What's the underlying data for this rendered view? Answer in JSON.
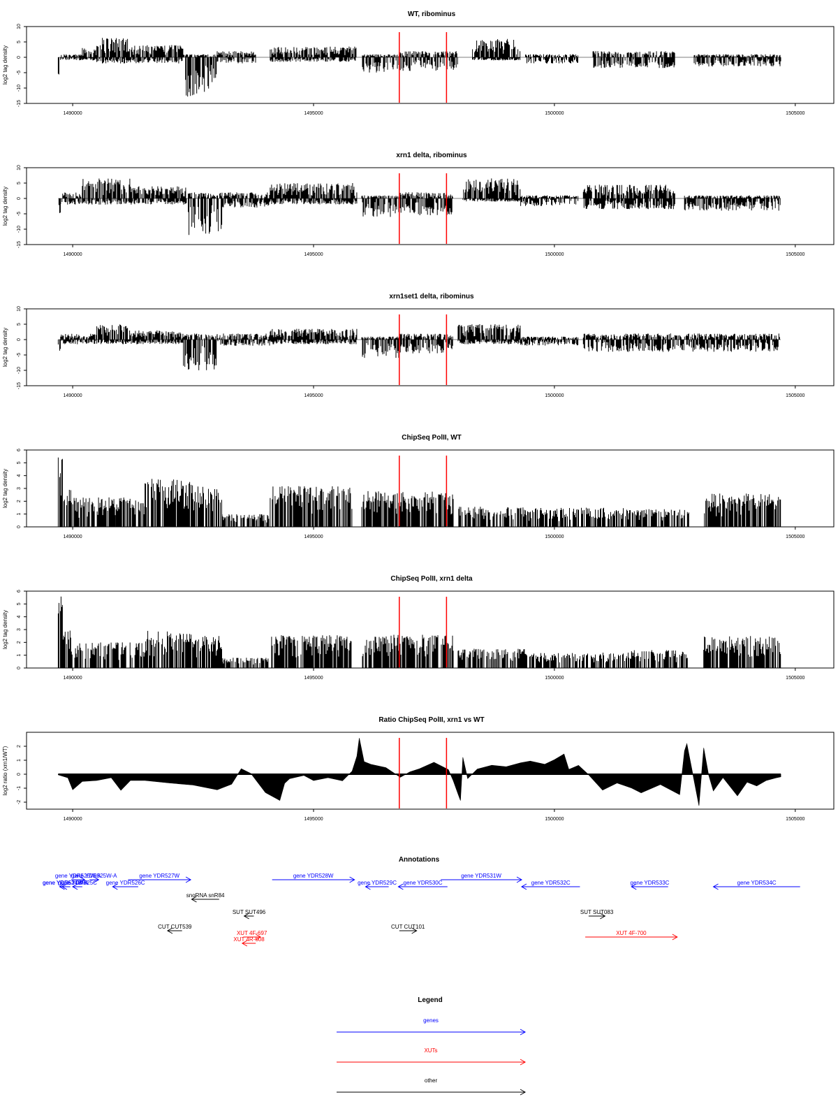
{
  "colors": {
    "gene": "#0000ff",
    "xut": "#ff0000",
    "other": "#000000",
    "marker": "#ff0000",
    "baseline": "#bebebe",
    "signal": "#000000"
  },
  "x_ticks": [
    "1490000",
    "1495000",
    "1500000",
    "1505000"
  ],
  "chart_data": [
    {
      "type": "bar",
      "title": "WT, ribominus",
      "ylabel": "log2 tag density",
      "xlim": [
        1489700,
        1504700
      ],
      "ylim": [
        -15,
        10
      ],
      "yticks": [
        "10",
        "5",
        "0",
        "-5",
        "-10",
        "-15"
      ],
      "x_tick_values": [
        1490000,
        1495000,
        1500000,
        1505000
      ],
      "markers": [
        1496780,
        1497760
      ],
      "baseline": true,
      "profile": [
        {
          "from": 1489700,
          "to": 1489750,
          "pos": 0,
          "neg": -7
        },
        {
          "from": 1489750,
          "to": 1490200,
          "pos": 1,
          "neg": -1
        },
        {
          "from": 1490200,
          "to": 1490500,
          "pos": 3,
          "neg": -1
        },
        {
          "from": 1490500,
          "to": 1491200,
          "pos": 6.5,
          "neg": -2
        },
        {
          "from": 1491200,
          "to": 1492300,
          "pos": 4,
          "neg": -2
        },
        {
          "from": 1492300,
          "to": 1493000,
          "pos": 1,
          "neg": -13
        },
        {
          "from": 1493000,
          "to": 1493800,
          "pos": 2,
          "neg": -2
        },
        {
          "from": 1494100,
          "to": 1495900,
          "pos": 3.5,
          "neg": -1.5
        },
        {
          "from": 1496000,
          "to": 1496800,
          "pos": 1,
          "neg": -5
        },
        {
          "from": 1496800,
          "to": 1498000,
          "pos": 2,
          "neg": -4.5
        },
        {
          "from": 1498300,
          "to": 1499300,
          "pos": 6,
          "neg": -1
        },
        {
          "from": 1499400,
          "to": 1500500,
          "pos": 1,
          "neg": -2
        },
        {
          "from": 1500800,
          "to": 1502500,
          "pos": 2,
          "neg": -3.5
        },
        {
          "from": 1502900,
          "to": 1504700,
          "pos": 1,
          "neg": -3
        }
      ]
    },
    {
      "type": "bar",
      "title": "xrn1 delta, ribominus",
      "ylabel": "log2 tag density",
      "xlim": [
        1489700,
        1504700
      ],
      "ylim": [
        -15,
        10
      ],
      "yticks": [
        "10",
        "5",
        "0",
        "-5",
        "-10",
        "-15"
      ],
      "x_tick_values": [
        1490000,
        1495000,
        1500000,
        1505000
      ],
      "markers": [
        1496780,
        1497760
      ],
      "baseline": true,
      "profile": [
        {
          "from": 1489700,
          "to": 1489750,
          "pos": 0,
          "neg": -7.5
        },
        {
          "from": 1489750,
          "to": 1490200,
          "pos": 2,
          "neg": -2
        },
        {
          "from": 1490200,
          "to": 1491200,
          "pos": 6.5,
          "neg": -2
        },
        {
          "from": 1491200,
          "to": 1492400,
          "pos": 4,
          "neg": -2
        },
        {
          "from": 1492400,
          "to": 1493100,
          "pos": 2,
          "neg": -12
        },
        {
          "from": 1493100,
          "to": 1494100,
          "pos": 2,
          "neg": -3
        },
        {
          "from": 1494100,
          "to": 1495900,
          "pos": 5,
          "neg": -2
        },
        {
          "from": 1496000,
          "to": 1496800,
          "pos": 1,
          "neg": -6
        },
        {
          "from": 1496800,
          "to": 1497900,
          "pos": 2,
          "neg": -5.5
        },
        {
          "from": 1498100,
          "to": 1499300,
          "pos": 6.5,
          "neg": -1
        },
        {
          "from": 1499300,
          "to": 1500500,
          "pos": 1,
          "neg": -2.5
        },
        {
          "from": 1500600,
          "to": 1502500,
          "pos": 4.5,
          "neg": -3.5
        },
        {
          "from": 1502700,
          "to": 1504700,
          "pos": 1,
          "neg": -4
        }
      ]
    },
    {
      "type": "bar",
      "title": "xrn1set1 delta, ribominus",
      "ylabel": "log2 tag density",
      "xlim": [
        1489700,
        1504700
      ],
      "ylim": [
        -15,
        10
      ],
      "yticks": [
        "10",
        "5",
        "0",
        "-5",
        "-10",
        "-15"
      ],
      "x_tick_values": [
        1490000,
        1495000,
        1500000,
        1505000
      ],
      "markers": [
        1496780,
        1497760
      ],
      "baseline": true,
      "profile": [
        {
          "from": 1489700,
          "to": 1489750,
          "pos": 0,
          "neg": -7
        },
        {
          "from": 1489750,
          "to": 1490500,
          "pos": 2,
          "neg": -1.5
        },
        {
          "from": 1490500,
          "to": 1491200,
          "pos": 5,
          "neg": -1.5
        },
        {
          "from": 1491200,
          "to": 1492300,
          "pos": 3,
          "neg": -1.5
        },
        {
          "from": 1492300,
          "to": 1493000,
          "pos": 2,
          "neg": -10
        },
        {
          "from": 1493000,
          "to": 1494100,
          "pos": 2,
          "neg": -2
        },
        {
          "from": 1494100,
          "to": 1495900,
          "pos": 3.5,
          "neg": -1.5
        },
        {
          "from": 1496000,
          "to": 1496800,
          "pos": 1,
          "neg": -6
        },
        {
          "from": 1496800,
          "to": 1497900,
          "pos": 2,
          "neg": -4.5
        },
        {
          "from": 1498000,
          "to": 1499300,
          "pos": 5,
          "neg": -1.5
        },
        {
          "from": 1499300,
          "to": 1500500,
          "pos": 1,
          "neg": -2
        },
        {
          "from": 1500600,
          "to": 1504700,
          "pos": 2,
          "neg": -4
        }
      ]
    },
    {
      "type": "bar",
      "title": "ChipSeq PolII, WT",
      "ylabel": "log2 tag density",
      "xlim": [
        1489700,
        1504700
      ],
      "ylim": [
        0,
        6
      ],
      "yticks": [
        "6",
        "5",
        "4",
        "3",
        "2",
        "1",
        "0"
      ],
      "x_tick_values": [
        1490000,
        1495000,
        1500000,
        1505000
      ],
      "markers": [
        1496780,
        1497760
      ],
      "baseline": false,
      "profile": [
        {
          "from": 1489700,
          "to": 1489800,
          "pos": 5.5,
          "neg": 0
        },
        {
          "from": 1489800,
          "to": 1490000,
          "pos": 3,
          "neg": 0
        },
        {
          "from": 1490000,
          "to": 1490900,
          "pos": 2.3,
          "neg": 0
        },
        {
          "from": 1490900,
          "to": 1491500,
          "pos": 2.3,
          "neg": 0
        },
        {
          "from": 1491500,
          "to": 1492500,
          "pos": 3.8,
          "neg": 0
        },
        {
          "from": 1492500,
          "to": 1493100,
          "pos": 3.2,
          "neg": 0
        },
        {
          "from": 1493100,
          "to": 1494100,
          "pos": 1,
          "neg": 0
        },
        {
          "from": 1494100,
          "to": 1495800,
          "pos": 3.2,
          "neg": 0
        },
        {
          "from": 1496000,
          "to": 1497900,
          "pos": 2.8,
          "neg": 0
        },
        {
          "from": 1498000,
          "to": 1499400,
          "pos": 1.6,
          "neg": 0
        },
        {
          "from": 1499400,
          "to": 1501600,
          "pos": 1.5,
          "neg": 0
        },
        {
          "from": 1501600,
          "to": 1502800,
          "pos": 1.4,
          "neg": 0
        },
        {
          "from": 1503100,
          "to": 1504700,
          "pos": 2.6,
          "neg": 0
        }
      ]
    },
    {
      "type": "bar",
      "title": "ChipSeq PolII, xrn1 delta",
      "ylabel": "log2 tag density",
      "xlim": [
        1489700,
        1504700
      ],
      "ylim": [
        0,
        6
      ],
      "yticks": [
        "6",
        "5",
        "4",
        "3",
        "2",
        "1",
        "0"
      ],
      "x_tick_values": [
        1490000,
        1495000,
        1500000,
        1505000
      ],
      "markers": [
        1496780,
        1497760
      ],
      "baseline": false,
      "profile": [
        {
          "from": 1489700,
          "to": 1489800,
          "pos": 5.6,
          "neg": 0
        },
        {
          "from": 1489800,
          "to": 1490000,
          "pos": 3,
          "neg": 0
        },
        {
          "from": 1490000,
          "to": 1490900,
          "pos": 2,
          "neg": 0
        },
        {
          "from": 1490900,
          "to": 1491500,
          "pos": 2,
          "neg": 0
        },
        {
          "from": 1491500,
          "to": 1492500,
          "pos": 2.9,
          "neg": 0
        },
        {
          "from": 1492500,
          "to": 1493100,
          "pos": 2.5,
          "neg": 0
        },
        {
          "from": 1493100,
          "to": 1494100,
          "pos": 0.8,
          "neg": 0
        },
        {
          "from": 1494100,
          "to": 1495800,
          "pos": 2.6,
          "neg": 0
        },
        {
          "from": 1496000,
          "to": 1497900,
          "pos": 2.6,
          "neg": 0
        },
        {
          "from": 1498000,
          "to": 1499400,
          "pos": 1.5,
          "neg": 0
        },
        {
          "from": 1499400,
          "to": 1501600,
          "pos": 1.2,
          "neg": 0
        },
        {
          "from": 1501600,
          "to": 1502800,
          "pos": 1.4,
          "neg": 0
        },
        {
          "from": 1503100,
          "to": 1504700,
          "pos": 2.5,
          "neg": 0
        }
      ]
    },
    {
      "type": "area",
      "title": "Ratio ChipSeq PolII, xrn1 vs WT",
      "ylabel": "log2 ratio (xrn1/WT)",
      "xlim": [
        1489700,
        1504700
      ],
      "ylim": [
        -2.5,
        3
      ],
      "yticks": [
        "2",
        "1",
        "0",
        "-1",
        "-2"
      ],
      "ytick_values": [
        2,
        1,
        0,
        -1,
        -2
      ],
      "x_tick_values": [
        1490000,
        1495000,
        1500000,
        1505000
      ],
      "markers": [
        1496780,
        1497760
      ],
      "x": [
        1489700,
        1489900,
        1490000,
        1490200,
        1490500,
        1490800,
        1491000,
        1491200,
        1491500,
        1492000,
        1492500,
        1493000,
        1493300,
        1493500,
        1493700,
        1494000,
        1494300,
        1494400,
        1494500,
        1494800,
        1495000,
        1495300,
        1495600,
        1495800,
        1495900,
        1495950,
        1496050,
        1496200,
        1496500,
        1496800,
        1497000,
        1497200,
        1497500,
        1497800,
        1497900,
        1498000,
        1498050,
        1498100,
        1498200,
        1498300,
        1498400,
        1498700,
        1499000,
        1499300,
        1499500,
        1499800,
        1500000,
        1500200,
        1500300,
        1500500,
        1500700,
        1501000,
        1501300,
        1501600,
        1501800,
        1502200,
        1502600,
        1502700,
        1502750,
        1502900,
        1503000,
        1503100,
        1503200,
        1503300,
        1503500,
        1503800,
        1504000,
        1504200,
        1504400,
        1504600,
        1504700
      ],
      "y": [
        0,
        -0.2,
        -1.1,
        -0.5,
        -0.4,
        -0.3,
        -1.1,
        -0.5,
        -0.4,
        -0.6,
        -0.8,
        -1.1,
        -0.7,
        0.4,
        0.1,
        -1.3,
        -1.9,
        -0.6,
        -0.3,
        -0.1,
        -0.4,
        -0.2,
        -0.5,
        0.2,
        1.3,
        2.6,
        0.9,
        0.7,
        0.5,
        -0.2,
        0.2,
        0.4,
        0.8,
        0.3,
        -0.5,
        -1.4,
        -1.9,
        1.2,
        -0.3,
        0,
        0.4,
        0.6,
        0.5,
        0.8,
        0.9,
        0.7,
        1,
        1.4,
        0.3,
        0.6,
        0,
        -1.1,
        -0.6,
        -1,
        -1.3,
        -0.7,
        -1.5,
        1.7,
        2.2,
        -0.5,
        -2.2,
        1.9,
        0,
        -1.2,
        -0.2,
        -1.5,
        -0.6,
        -0.9,
        -0.5,
        -0.3,
        -0.2
      ]
    }
  ],
  "annotations": {
    "title": "Annotations",
    "items": [
      {
        "label": "gene YDR524C-A",
        "type": "gene",
        "dir": "left",
        "from": 1489730,
        "to": 1489950,
        "row": 1
      },
      {
        "label": "gene YDR524W-A",
        "type": "gene",
        "dir": "left",
        "from": 1489780,
        "to": 1489920,
        "row": 1
      },
      {
        "label": "gene YDR525W-A",
        "type": "gene",
        "dir": "right",
        "from": 1489970,
        "to": 1490250,
        "row": 0
      },
      {
        "label": "gene YDR525C",
        "type": "gene",
        "dir": "left",
        "from": 1490000,
        "to": 1490200,
        "row": 1
      },
      {
        "label": "gene YDR525W-A",
        "type": "gene",
        "dir": "right",
        "from": 1490350,
        "to": 1490540,
        "row": 0
      },
      {
        "label": "gene YDR526C",
        "type": "gene",
        "dir": "left",
        "from": 1490830,
        "to": 1491360,
        "row": 1
      },
      {
        "label": "gene YDR527W",
        "type": "gene",
        "dir": "right",
        "from": 1491150,
        "to": 1492450,
        "row": 0
      },
      {
        "label": "snoRNA snR84",
        "type": "other",
        "dir": "left",
        "from": 1492470,
        "to": 1493040,
        "row": 2
      },
      {
        "label": "SUT SUT496",
        "type": "other",
        "dir": "left",
        "from": 1493560,
        "to": 1493760,
        "row": 3
      },
      {
        "label": "CUT CUT539",
        "type": "other",
        "dir": "left",
        "from": 1491970,
        "to": 1492270,
        "row": 4
      },
      {
        "label": "XUT 4F-697",
        "type": "xut",
        "dir": "right",
        "from": 1493540,
        "to": 1493900,
        "row": 5
      },
      {
        "label": "XUT 4R-608",
        "type": "xut",
        "dir": "left",
        "from": 1493520,
        "to": 1493800,
        "row": 6
      },
      {
        "label": "gene YDR528W",
        "type": "gene",
        "dir": "right",
        "from": 1494140,
        "to": 1495850,
        "row": 0
      },
      {
        "label": "gene YDR529C",
        "type": "gene",
        "dir": "left",
        "from": 1496080,
        "to": 1496560,
        "row": 1
      },
      {
        "label": "gene YDR530C",
        "type": "gene",
        "dir": "left",
        "from": 1496760,
        "to": 1497780,
        "row": 1
      },
      {
        "label": "CUT CUT101",
        "type": "other",
        "dir": "right",
        "from": 1496780,
        "to": 1497140,
        "row": 4
      },
      {
        "label": "gene YDR531W",
        "type": "gene",
        "dir": "right",
        "from": 1497640,
        "to": 1499320,
        "row": 0
      },
      {
        "label": "gene YDR532C",
        "type": "gene",
        "dir": "left",
        "from": 1499320,
        "to": 1500530,
        "row": 1
      },
      {
        "label": "SUT SUT083",
        "type": "other",
        "dir": "right",
        "from": 1500710,
        "to": 1501050,
        "row": 3
      },
      {
        "label": "XUT 4F-700",
        "type": "xut",
        "dir": "right",
        "from": 1500640,
        "to": 1502550,
        "row": 5
      },
      {
        "label": "gene YDR533C",
        "type": "gene",
        "dir": "left",
        "from": 1501600,
        "to": 1502360,
        "row": 1
      },
      {
        "label": "gene YDR534C",
        "type": "gene",
        "dir": "left",
        "from": 1503300,
        "to": 1505100,
        "row": 1
      }
    ]
  },
  "legend": {
    "title": "Legend",
    "entries": [
      {
        "label": "genes",
        "type": "gene"
      },
      {
        "label": "XUTs",
        "type": "xut"
      },
      {
        "label": "other",
        "type": "other"
      }
    ]
  }
}
